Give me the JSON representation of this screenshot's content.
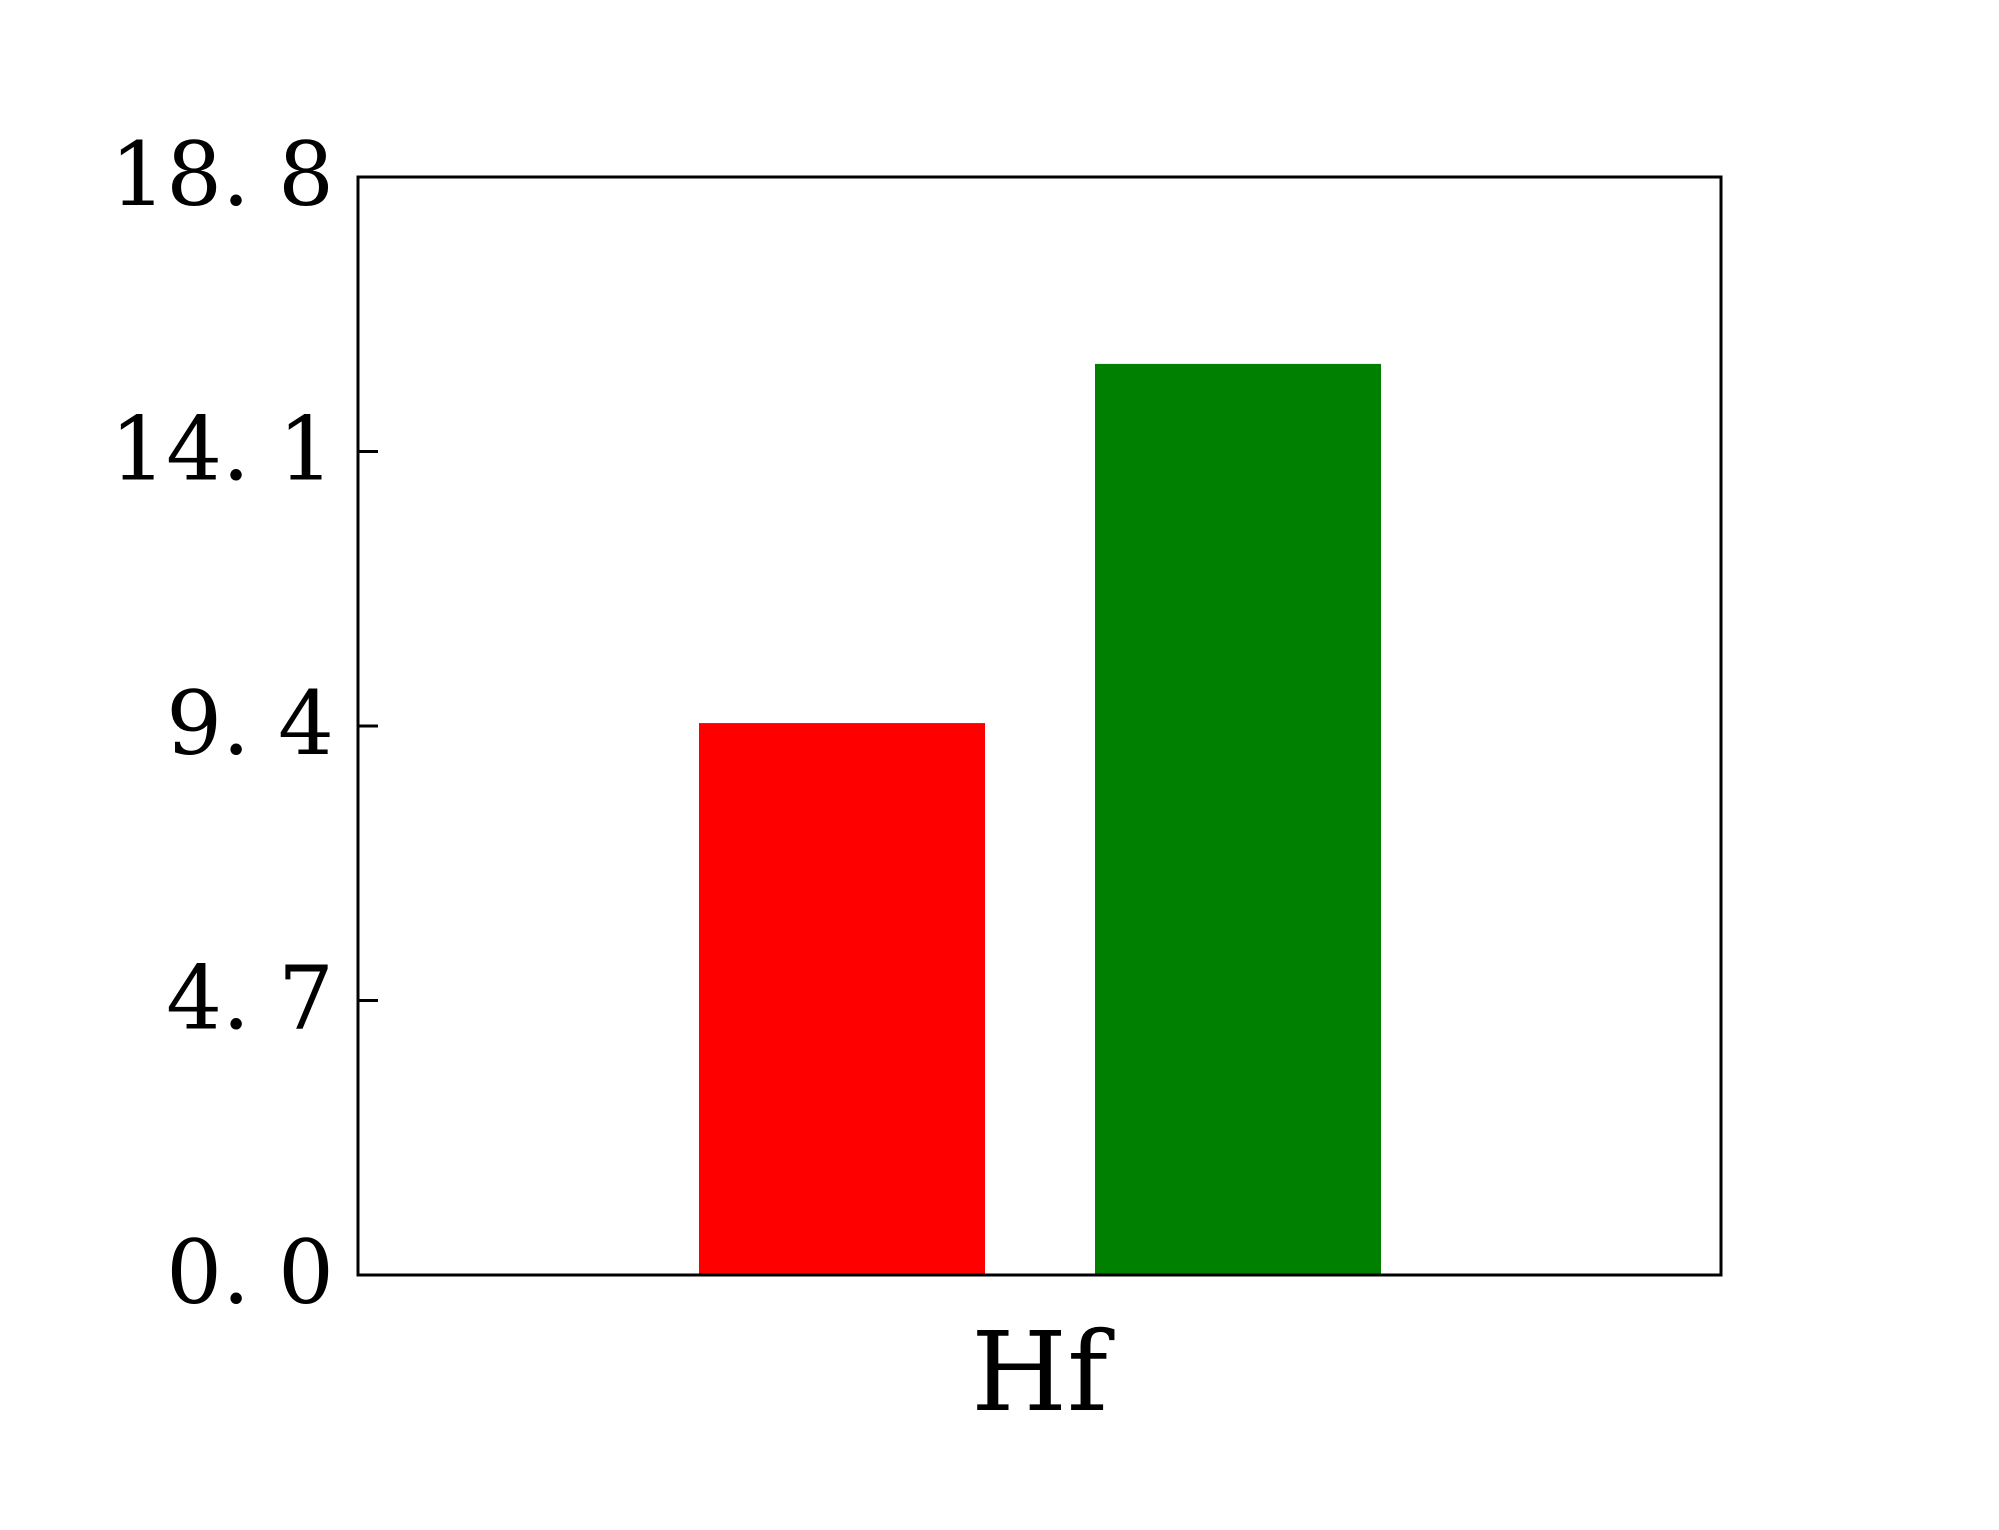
{
  "chart_data": {
    "type": "bar",
    "categories": [
      "Hf"
    ],
    "series": [
      {
        "values": [
          9.45
        ],
        "color": "#ff0000"
      },
      {
        "values": [
          15.6
        ],
        "color": "#008000"
      }
    ],
    "title": "",
    "xlabel": "",
    "ylabel": "",
    "ylim": [
      0,
      18.8
    ],
    "yticks": [
      0.0,
      4.7,
      9.4,
      14.1,
      18.8
    ],
    "ytick_labels": [
      "0. 0",
      "4. 7",
      "9. 4",
      "14. 1",
      "18. 8"
    ],
    "grid": false,
    "legend": "none"
  }
}
